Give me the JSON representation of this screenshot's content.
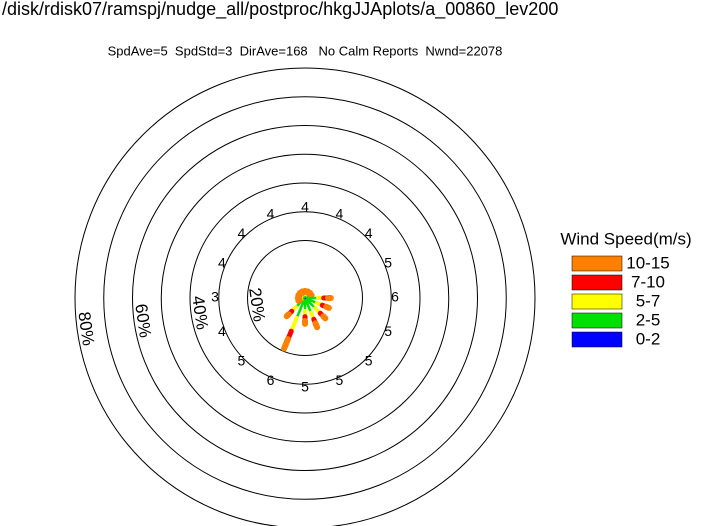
{
  "chart_data": {
    "type": "windrose",
    "title": "/disk/rdisk07/ramspj/nudge_all/postproc/hkgJJAplots/a_00860_lev200",
    "subtitle": "SpdAve=5  SpdStd=3  DirAve=168   No Calm Reports  Nwnd=22078",
    "legend_title": "Wind Speed(m/s)",
    "rlim": [
      0,
      80
    ],
    "rticks": [
      {
        "value": 20,
        "label": "20%"
      },
      {
        "value": 40,
        "label": "40%"
      },
      {
        "value": 60,
        "label": "60%"
      },
      {
        "value": 80,
        "label": "80%"
      }
    ],
    "rgrid": [
      20,
      30,
      40,
      50,
      60,
      70,
      80
    ],
    "direction_speeds": [
      4,
      4,
      4,
      5,
      6,
      5,
      5,
      5,
      5,
      6,
      5,
      4,
      3,
      4,
      4,
      4
    ],
    "series": [
      {
        "name": "0-2",
        "color": "#0000ff",
        "values": [
          0.3,
          0.3,
          0.3,
          0.3,
          0.5,
          0.5,
          0.5,
          0.5,
          0.5,
          0.5,
          0.5,
          0.3,
          0.3,
          0.3,
          0.3,
          0.3
        ]
      },
      {
        "name": "2-5",
        "color": "#00e000",
        "values": [
          1,
          1,
          1,
          1,
          4,
          4,
          4.5,
          5,
          4,
          7,
          4,
          1,
          1.2,
          1,
          1,
          1
        ]
      },
      {
        "name": "5-7",
        "color": "#ffff00",
        "values": [
          0.5,
          0.5,
          0.5,
          0.5,
          2,
          2,
          2.5,
          2.5,
          2,
          5,
          2,
          0.5,
          0.4,
          0.5,
          0.5,
          0.5
        ]
      },
      {
        "name": "7-10",
        "color": "#ff0000",
        "values": [
          0.3,
          0.3,
          0.3,
          0.3,
          1.5,
          1.5,
          1.5,
          1.5,
          1.5,
          3,
          1.5,
          0.3,
          0.3,
          0.3,
          0.3,
          0.3
        ]
      },
      {
        "name": "10-15",
        "color": "#ff8000",
        "values": [
          0.4,
          0.4,
          0.4,
          0.4,
          1,
          1,
          1,
          1.5,
          1,
          3.5,
          1,
          0.4,
          0.3,
          0.4,
          0.4,
          0.4
        ]
      }
    ]
  }
}
